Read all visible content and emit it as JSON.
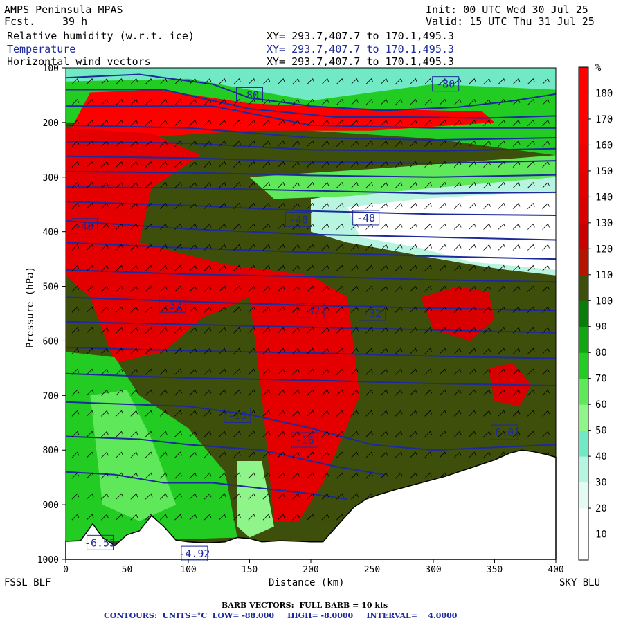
{
  "header": {
    "model_name": "AMPS Peninsula MPAS",
    "forecast_label": "Fcst.",
    "forecast_hours": "39 h",
    "init_text": "Init: 00 UTC Wed 30 Jul 25",
    "valid_text": "Valid: 15 UTC Thu 31 Jul 25"
  },
  "fields": [
    {
      "name": "Relative humidity (w.r.t. ice)",
      "xy": "XY= 293.7,407.7 to 170.1,495.3",
      "color": "#000000"
    },
    {
      "name": "Temperature",
      "xy": "XY= 293.7,407.7 to 170.1,495.3",
      "color": "#1c2a9c"
    },
    {
      "name": "Horizontal wind vectors",
      "xy": "XY= 293.7,407.7 to 170.1,495.3",
      "color": "#000000"
    }
  ],
  "chart_data": {
    "type": "heatmap",
    "xlabel": "Distance (km)",
    "ylabel": "Pressure (hPa)",
    "xlim": [
      0,
      400
    ],
    "ylim": [
      1000,
      100
    ],
    "x_ticks": [
      0,
      50,
      100,
      150,
      200,
      250,
      300,
      350,
      400
    ],
    "y_ticks": [
      100,
      200,
      300,
      400,
      500,
      600,
      700,
      800,
      900,
      1000
    ],
    "start_label": "FSSL_BLF",
    "end_label": "SKY_BLU",
    "colorbar": {
      "unit": "%",
      "levels": [
        10,
        20,
        30,
        40,
        50,
        60,
        70,
        80,
        90,
        100,
        110,
        120,
        130,
        140,
        150,
        160,
        170,
        180
      ],
      "colors": [
        "#ffffff",
        "#ffffff",
        "#e4fbf2",
        "#b8f5e1",
        "#70e9c4",
        "#8ff58a",
        "#5ee85a",
        "#22cc22",
        "#12a612",
        "#087d08",
        "#3e4f0c",
        "#b51500",
        "#c80000",
        "#d80000",
        "#e40000",
        "#ee0000",
        "#f70000",
        "#ff0000",
        "#ff0000"
      ]
    },
    "contour_labels": [
      {
        "text": "-80",
        "x": 150,
        "p": 150
      },
      {
        "text": "-80",
        "x": 310,
        "p": 130
      },
      {
        "text": "-48",
        "x": 15,
        "p": 390
      },
      {
        "text": "-48",
        "x": 190,
        "p": 378
      },
      {
        "text": "-48",
        "x": 245,
        "p": 375
      },
      {
        "text": "-32",
        "x": 87,
        "p": 535
      },
      {
        "text": "-32",
        "x": 200,
        "p": 545
      },
      {
        "text": "-32",
        "x": 250,
        "p": 550
      },
      {
        "text": "-16",
        "x": 140,
        "p": 737
      },
      {
        "text": "-16",
        "x": 195,
        "p": 782
      },
      {
        "text": "-6.55",
        "x": 28,
        "p": 970
      },
      {
        "text": "-4.92",
        "x": 105,
        "p": 990
      },
      {
        "text": "-6.01",
        "x": 358,
        "p": 768
      }
    ],
    "isotherms": [
      {
        "level": -80,
        "points": [
          [
            0,
            118
          ],
          [
            60,
            112
          ],
          [
            120,
            130
          ],
          [
            150,
            155
          ],
          [
            200,
            170
          ],
          [
            260,
            178
          ],
          [
            320,
            172
          ],
          [
            360,
            162
          ],
          [
            400,
            148
          ]
        ]
      },
      {
        "level": -76,
        "points": [
          [
            0,
            140
          ],
          [
            80,
            140
          ],
          [
            150,
            175
          ],
          [
            220,
            190
          ],
          [
            280,
            190
          ],
          [
            340,
            192
          ],
          [
            400,
            188
          ]
        ]
      },
      {
        "level": -72,
        "points": [
          [
            0,
            170
          ],
          [
            120,
            170
          ],
          [
            200,
            205
          ],
          [
            300,
            210
          ],
          [
            400,
            210
          ]
        ]
      },
      {
        "level": -68,
        "points": [
          [
            0,
            205
          ],
          [
            100,
            210
          ],
          [
            200,
            228
          ],
          [
            300,
            232
          ],
          [
            400,
            228
          ]
        ]
      },
      {
        "level": -64,
        "points": [
          [
            0,
            235
          ],
          [
            100,
            238
          ],
          [
            200,
            250
          ],
          [
            300,
            252
          ],
          [
            400,
            248
          ]
        ]
      },
      {
        "level": -60,
        "points": [
          [
            0,
            262
          ],
          [
            100,
            265
          ],
          [
            200,
            272
          ],
          [
            300,
            275
          ],
          [
            400,
            270
          ]
        ]
      },
      {
        "level": -56,
        "points": [
          [
            0,
            290
          ],
          [
            100,
            292
          ],
          [
            200,
            297
          ],
          [
            300,
            300
          ],
          [
            400,
            296
          ]
        ]
      },
      {
        "level": -52,
        "points": [
          [
            0,
            318
          ],
          [
            100,
            320
          ],
          [
            200,
            325
          ],
          [
            300,
            330
          ],
          [
            400,
            328
          ]
        ]
      },
      {
        "level": -48,
        "points": [
          [
            0,
            345
          ],
          [
            100,
            352
          ],
          [
            200,
            362
          ],
          [
            300,
            368
          ],
          [
            400,
            370
          ]
        ]
      },
      {
        "level": -44,
        "points": [
          [
            0,
            380
          ],
          [
            100,
            395
          ],
          [
            200,
            405
          ],
          [
            300,
            410
          ],
          [
            400,
            415
          ]
        ]
      },
      {
        "level": -40,
        "points": [
          [
            0,
            420
          ],
          [
            100,
            430
          ],
          [
            200,
            438
          ],
          [
            300,
            445
          ],
          [
            400,
            450
          ]
        ]
      },
      {
        "level": -36,
        "points": [
          [
            0,
            470
          ],
          [
            100,
            478
          ],
          [
            200,
            482
          ],
          [
            300,
            488
          ],
          [
            400,
            492
          ]
        ]
      },
      {
        "level": -32,
        "points": [
          [
            0,
            520
          ],
          [
            100,
            528
          ],
          [
            200,
            535
          ],
          [
            300,
            540
          ],
          [
            400,
            545
          ]
        ]
      },
      {
        "level": -28,
        "points": [
          [
            0,
            565
          ],
          [
            100,
            570
          ],
          [
            200,
            575
          ],
          [
            300,
            580
          ],
          [
            400,
            585
          ]
        ]
      },
      {
        "level": -24,
        "points": [
          [
            0,
            612
          ],
          [
            100,
            618
          ],
          [
            200,
            622
          ],
          [
            300,
            628
          ],
          [
            400,
            632
          ]
        ]
      },
      {
        "level": -20,
        "points": [
          [
            0,
            660
          ],
          [
            100,
            668
          ],
          [
            200,
            672
          ],
          [
            300,
            678
          ],
          [
            400,
            682
          ]
        ]
      },
      {
        "level": -16,
        "points": [
          [
            0,
            712
          ],
          [
            100,
            720
          ],
          [
            150,
            735
          ],
          [
            200,
            760
          ],
          [
            250,
            790
          ],
          [
            300,
            800
          ],
          [
            400,
            790
          ]
        ]
      },
      {
        "level": -12,
        "points": [
          [
            0,
            775
          ],
          [
            60,
            780
          ],
          [
            100,
            790
          ],
          [
            160,
            800
          ],
          [
            220,
            830
          ],
          [
            260,
            845
          ]
        ]
      },
      {
        "level": -8,
        "points": [
          [
            0,
            840
          ],
          [
            40,
            845
          ],
          [
            80,
            860
          ],
          [
            120,
            860
          ],
          [
            160,
            870
          ],
          [
            200,
            880
          ],
          [
            230,
            890
          ]
        ]
      }
    ],
    "terrain_p": [
      [
        0,
        967
      ],
      [
        12,
        966
      ],
      [
        22,
        935
      ],
      [
        30,
        960
      ],
      [
        40,
        975
      ],
      [
        50,
        955
      ],
      [
        60,
        948
      ],
      [
        70,
        920
      ],
      [
        80,
        940
      ],
      [
        90,
        965
      ],
      [
        100,
        968
      ],
      [
        115,
        970
      ],
      [
        130,
        968
      ],
      [
        140,
        960
      ],
      [
        150,
        962
      ],
      [
        160,
        968
      ],
      [
        175,
        966
      ],
      [
        190,
        967
      ],
      [
        200,
        968
      ],
      [
        210,
        968
      ],
      [
        215,
        955
      ],
      [
        225,
        930
      ],
      [
        235,
        905
      ],
      [
        245,
        890
      ],
      [
        255,
        882
      ],
      [
        270,
        872
      ],
      [
        290,
        860
      ],
      [
        310,
        848
      ],
      [
        330,
        833
      ],
      [
        350,
        818
      ],
      [
        362,
        806
      ],
      [
        372,
        800
      ],
      [
        382,
        803
      ],
      [
        392,
        808
      ],
      [
        400,
        813
      ]
    ]
  },
  "footer": {
    "barb_text": "BARB VECTORS:  FULL BARB = 10 kts",
    "contours_text": "CONTOURS:  UNITS=°C  LOW= -88.000     HIGH= -8.0000     INTERVAL=    4.0000"
  }
}
